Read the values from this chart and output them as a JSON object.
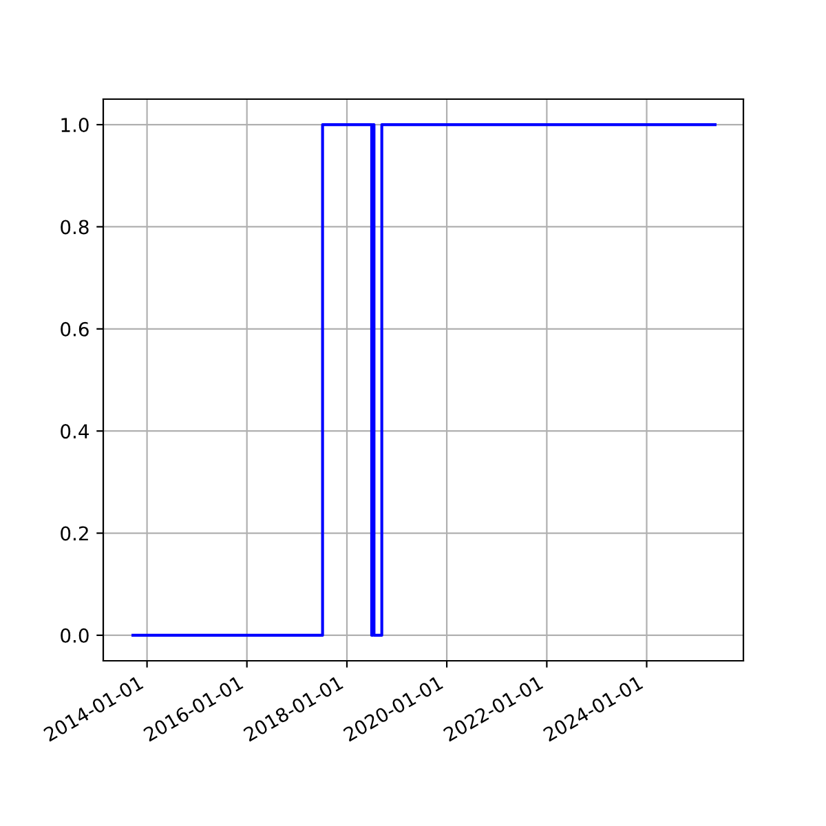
{
  "chart_data": {
    "type": "step",
    "x": [
      "2013-09-20",
      "2017-07-07",
      "2018-07-01",
      "2018-07-10",
      "2018-07-18",
      "2018-09-13",
      "2025-05-15"
    ],
    "series": [
      {
        "color": "#0000ff",
        "values": [
          0,
          1,
          0,
          1,
          0,
          1,
          1
        ]
      }
    ],
    "xlim": [
      "2013-02-15",
      "2025-12-08"
    ],
    "xticks": [
      "2014-01-01",
      "2016-01-01",
      "2018-01-01",
      "2020-01-01",
      "2022-01-01",
      "2024-01-01"
    ],
    "ylim": [
      -0.05,
      1.05
    ],
    "yticks": [
      {
        "value": 0,
        "label": "0.0"
      },
      {
        "value": 0.2,
        "label": "0.2"
      },
      {
        "value": 0.4,
        "label": "0.4"
      },
      {
        "value": 0.6,
        "label": "0.6"
      },
      {
        "value": 0.8,
        "label": "0.8"
      },
      {
        "value": 1,
        "label": "1.0"
      }
    ],
    "grid": true
  }
}
